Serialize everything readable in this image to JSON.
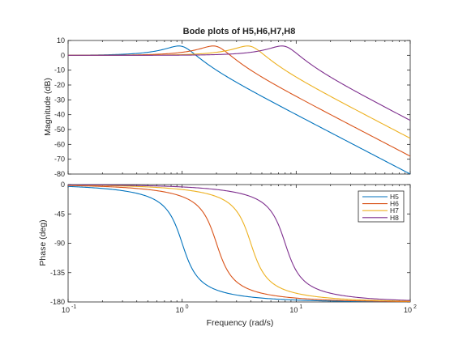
{
  "chart_data": {
    "type": "line",
    "title": "Bode plots of H5,H6,H7,H8",
    "xlabel": "Frequency  (rad/s)",
    "xscale": "log",
    "xlim": [
      0.1,
      100
    ],
    "x_tick_labels": [
      {
        "base": "10",
        "exp": "-1"
      },
      {
        "base": "10",
        "exp": "0"
      },
      {
        "base": "10",
        "exp": "1"
      },
      {
        "base": "10",
        "exp": "2"
      }
    ],
    "magnitude": {
      "ylabel": "Magnitude (dB)",
      "ylim": [
        -80,
        10
      ],
      "y_ticks": [
        10,
        0,
        -10,
        -20,
        -30,
        -40,
        -50,
        -60,
        -70,
        -80
      ]
    },
    "phase": {
      "ylabel": "Phase (deg)",
      "ylim": [
        -180,
        0
      ],
      "y_ticks": [
        0,
        -45,
        -90,
        -135,
        -180
      ]
    },
    "legend_position": "top-right of phase plot",
    "series": [
      {
        "name": "H5",
        "color": "#0072BD",
        "wn": 1,
        "zeta": 0.25,
        "magnitude_db": {
          "x": [
            0.1,
            0.5,
            0.97,
            2,
            10,
            100
          ],
          "y": [
            0,
            2,
            6,
            -8,
            -40,
            -80
          ]
        },
        "phase_deg": {
          "x": [
            0.1,
            0.5,
            1,
            2,
            10,
            100
          ],
          "y": [
            -3,
            -18,
            -90,
            -162,
            -177,
            -180
          ]
        }
      },
      {
        "name": "H6",
        "color": "#D95319",
        "wn": 2,
        "zeta": 0.25,
        "magnitude_db": {
          "x": [
            0.1,
            1,
            1.94,
            4,
            10,
            100
          ],
          "y": [
            0,
            2,
            6,
            -8,
            -28,
            -68
          ]
        },
        "phase_deg": {
          "x": [
            0.1,
            1,
            2,
            4,
            10,
            100
          ],
          "y": [
            -1,
            -18,
            -90,
            -162,
            -174,
            -179
          ]
        }
      },
      {
        "name": "H7",
        "color": "#EDB120",
        "wn": 4,
        "zeta": 0.25,
        "magnitude_db": {
          "x": [
            0.1,
            2,
            3.87,
            8,
            10,
            100
          ],
          "y": [
            0,
            2,
            6,
            -8,
            -16,
            -56
          ]
        },
        "phase_deg": {
          "x": [
            0.1,
            2,
            4,
            8,
            10,
            100
          ],
          "y": [
            -1,
            -18,
            -90,
            -162,
            -168,
            -179
          ]
        }
      },
      {
        "name": "H8",
        "color": "#7E2F8E",
        "wn": 8,
        "zeta": 0.25,
        "magnitude_db": {
          "x": [
            0.1,
            4,
            7.75,
            16,
            100
          ],
          "y": [
            0,
            2,
            6,
            -8,
            -44
          ]
        },
        "phase_deg": {
          "x": [
            0.1,
            4,
            8,
            16,
            100
          ],
          "y": [
            0,
            -18,
            -90,
            -162,
            -177
          ]
        }
      }
    ]
  }
}
